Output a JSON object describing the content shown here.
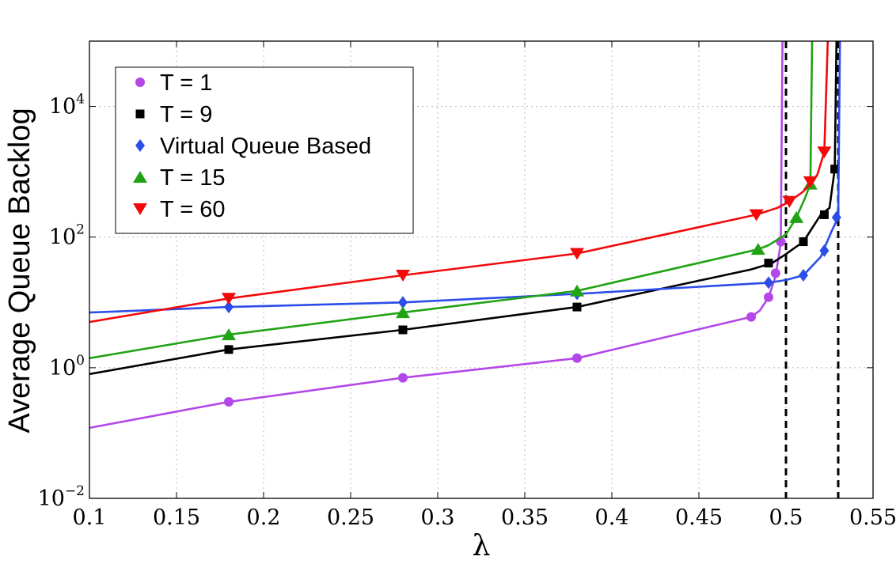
{
  "chart_data": {
    "type": "line",
    "title": "",
    "xlabel": "λ",
    "ylabel": "Average Queue Backlog",
    "xlim": [
      0.1,
      0.55
    ],
    "ylim": [
      0.01,
      100000
    ],
    "yscale": "log",
    "grid": true,
    "legend_position": "top-left",
    "x_ticks": [
      "0.1",
      "0.15",
      "0.2",
      "0.25",
      "0.3",
      "0.35",
      "0.4",
      "0.45",
      "0.5",
      "0.55"
    ],
    "y_ticks": [
      {
        "base": "10",
        "exp": "−2"
      },
      {
        "base": "10",
        "exp": "0"
      },
      {
        "base": "10",
        "exp": "2"
      },
      {
        "base": "10",
        "exp": "4"
      }
    ],
    "vertical_lines": [
      0.5,
      0.53
    ],
    "series": [
      {
        "name": "T = 1",
        "color": "#b347e8",
        "marker": "circle",
        "line": [
          [
            0.1,
            0.12
          ],
          [
            0.18,
            0.3
          ],
          [
            0.28,
            0.7
          ],
          [
            0.38,
            1.4
          ],
          [
            0.48,
            6
          ],
          [
            0.485,
            7.5
          ],
          [
            0.49,
            12
          ],
          [
            0.494,
            25
          ],
          [
            0.497,
            80
          ],
          [
            0.498,
            100000
          ]
        ],
        "markers": [
          [
            0.18,
            0.3
          ],
          [
            0.28,
            0.7
          ],
          [
            0.38,
            1.4
          ],
          [
            0.48,
            6
          ],
          [
            0.49,
            12
          ],
          [
            0.494,
            28
          ],
          [
            0.497,
            85
          ]
        ]
      },
      {
        "name": "T = 9",
        "color": "#000000",
        "marker": "square",
        "line": [
          [
            0.1,
            0.8
          ],
          [
            0.18,
            1.9
          ],
          [
            0.28,
            3.8
          ],
          [
            0.38,
            8.5
          ],
          [
            0.48,
            32
          ],
          [
            0.492,
            40
          ],
          [
            0.5,
            55
          ],
          [
            0.51,
            85
          ],
          [
            0.52,
            220
          ],
          [
            0.525,
            280
          ],
          [
            0.528,
            1100
          ],
          [
            0.529,
            100000
          ]
        ],
        "markers": [
          [
            0.18,
            1.9
          ],
          [
            0.28,
            3.8
          ],
          [
            0.38,
            8.5
          ],
          [
            0.49,
            40
          ],
          [
            0.51,
            85
          ],
          [
            0.522,
            220
          ],
          [
            0.528,
            1100
          ]
        ]
      },
      {
        "name": "Virtual Queue Based",
        "color": "#2b4de8",
        "marker": "diamond",
        "line": [
          [
            0.1,
            7
          ],
          [
            0.18,
            8.5
          ],
          [
            0.28,
            10
          ],
          [
            0.38,
            13.5
          ],
          [
            0.49,
            20
          ],
          [
            0.5,
            22
          ],
          [
            0.51,
            26
          ],
          [
            0.52,
            50
          ],
          [
            0.526,
            120
          ],
          [
            0.53,
            200
          ],
          [
            0.531,
            100000
          ]
        ],
        "markers": [
          [
            0.18,
            8.5
          ],
          [
            0.28,
            10
          ],
          [
            0.38,
            13.5
          ],
          [
            0.49,
            20
          ],
          [
            0.51,
            26
          ],
          [
            0.522,
            62
          ],
          [
            0.529,
            200
          ]
        ]
      },
      {
        "name": "T = 15",
        "color": "#22a315",
        "marker": "triangle-up",
        "line": [
          [
            0.1,
            1.4
          ],
          [
            0.18,
            3.2
          ],
          [
            0.28,
            7
          ],
          [
            0.38,
            15
          ],
          [
            0.484,
            65
          ],
          [
            0.49,
            75
          ],
          [
            0.5,
            110
          ],
          [
            0.506,
            200
          ],
          [
            0.511,
            400
          ],
          [
            0.514,
            650
          ],
          [
            0.515,
            100000
          ]
        ],
        "markers": [
          [
            0.18,
            3.2
          ],
          [
            0.28,
            7
          ],
          [
            0.38,
            15
          ],
          [
            0.484,
            65
          ],
          [
            0.506,
            200
          ],
          [
            0.514,
            650
          ]
        ]
      },
      {
        "name": "T = 60",
        "color": "#f20a0a",
        "marker": "triangle-down",
        "line": [
          [
            0.1,
            5
          ],
          [
            0.18,
            11.5
          ],
          [
            0.28,
            26
          ],
          [
            0.38,
            56
          ],
          [
            0.483,
            220
          ],
          [
            0.495,
            280
          ],
          [
            0.502,
            350
          ],
          [
            0.51,
            500
          ],
          [
            0.518,
            900
          ],
          [
            0.522,
            2000
          ],
          [
            0.524,
            100000
          ]
        ],
        "markers": [
          [
            0.18,
            11.5
          ],
          [
            0.28,
            26
          ],
          [
            0.38,
            56
          ],
          [
            0.483,
            220
          ],
          [
            0.502,
            350
          ],
          [
            0.514,
            700
          ],
          [
            0.522,
            2000
          ]
        ]
      }
    ]
  }
}
